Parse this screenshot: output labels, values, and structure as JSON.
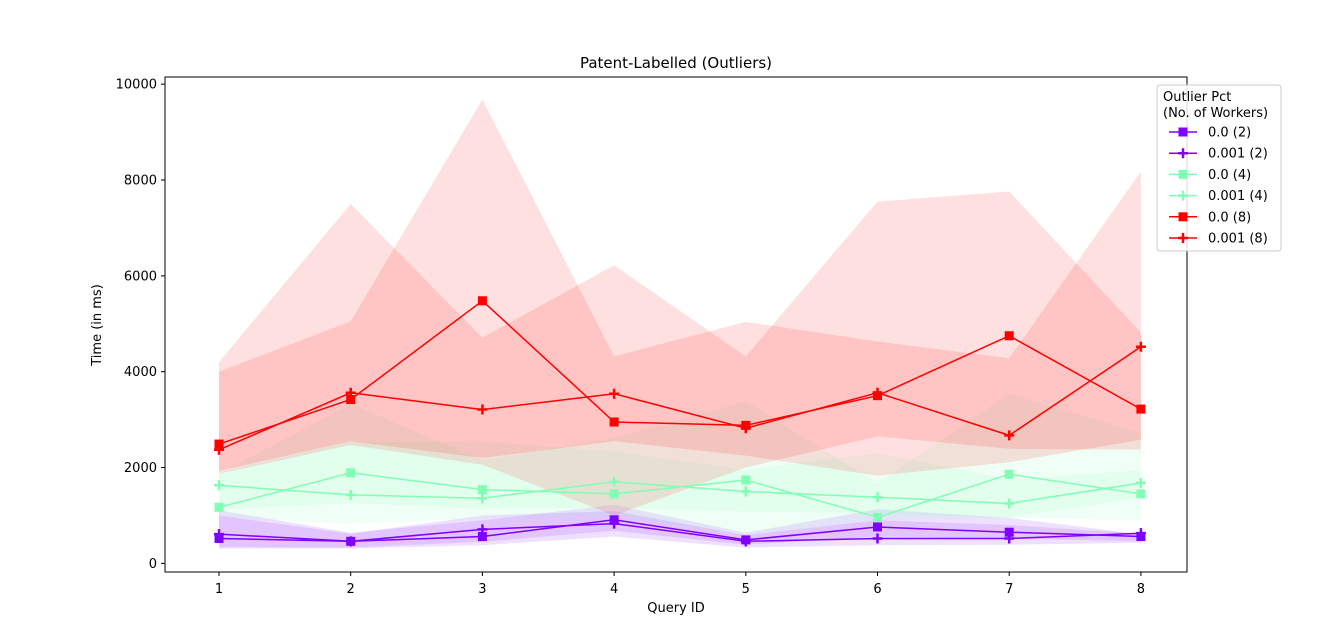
{
  "chart_data": {
    "type": "line",
    "title": "Patent-Labelled (Outliers)",
    "xlabel": "Query ID",
    "ylabel": "Time (in ms)",
    "x": [
      1,
      2,
      3,
      4,
      5,
      6,
      7,
      8
    ],
    "xticks": [
      "1",
      "2",
      "3",
      "4",
      "5",
      "6",
      "7",
      "8"
    ],
    "yticks": [
      "0",
      "2000",
      "4000",
      "6000",
      "8000",
      "10000"
    ],
    "xlim": [
      0.59,
      8.35
    ],
    "ylim": [
      -180,
      10150
    ],
    "grid": false,
    "legend": {
      "title": "Outlier Pct\n(No. of Workers)",
      "title_lines": [
        "Outlier Pct",
        "(No. of Workers)"
      ],
      "placement": "top-right, outside"
    },
    "series": [
      {
        "name": "0.0 (2)",
        "color": "#8000ff",
        "marker": "square",
        "values": [
          520,
          460,
          560,
          910,
          490,
          760,
          650,
          560
        ],
        "band_low": [
          340,
          330,
          450,
          680,
          390,
          560,
          520,
          460
        ],
        "band_high": [
          1110,
          640,
          900,
          1220,
          640,
          1130,
          950,
          610
        ]
      },
      {
        "name": "0.001 (2)",
        "color": "#8000ff",
        "marker": "plus",
        "values": [
          610,
          460,
          710,
          830,
          460,
          520,
          520,
          630
        ],
        "band_low": [
          310,
          310,
          380,
          560,
          330,
          380,
          390,
          430
        ],
        "band_high": [
          1000,
          620,
          1000,
          1090,
          590,
          900,
          800,
          620
        ]
      },
      {
        "name": "0.0 (4)",
        "color": "#80ffb4",
        "marker": "square",
        "values": [
          1170,
          1890,
          1540,
          1450,
          1740,
          960,
          1860,
          1450
        ],
        "band_low": [
          960,
          830,
          940,
          1000,
          600,
          900,
          950,
          900
        ],
        "band_high": [
          1860,
          3330,
          2150,
          2620,
          3380,
          1680,
          3540,
          2720
        ]
      },
      {
        "name": "0.001 (4)",
        "color": "#80ffb4",
        "marker": "plus",
        "values": [
          1630,
          1430,
          1360,
          1700,
          1500,
          1380,
          1250,
          1680
        ],
        "band_low": [
          1120,
          1260,
          1140,
          1160,
          1080,
          1040,
          960,
          1370
        ],
        "band_high": [
          1880,
          2550,
          2540,
          2330,
          1950,
          2300,
          1750,
          1940
        ]
      },
      {
        "name": "0.0 (8)",
        "color": "#ff0000",
        "marker": "square",
        "values": [
          2490,
          3420,
          5480,
          2950,
          2880,
          3500,
          4750,
          3220
        ],
        "band_low": [
          1870,
          2470,
          2060,
          1000,
          2000,
          2650,
          2390,
          2370
        ],
        "band_high": [
          4000,
          5050,
          9680,
          4320,
          5040,
          4630,
          4280,
          8180
        ]
      },
      {
        "name": "0.001 (8)",
        "color": "#ff0000",
        "marker": "plus",
        "values": [
          2370,
          3560,
          3210,
          3540,
          2820,
          3560,
          2670,
          4520
        ],
        "band_low": [
          1930,
          2550,
          2200,
          2550,
          2250,
          1830,
          2110,
          2580
        ],
        "band_high": [
          4200,
          7500,
          4710,
          6220,
          4320,
          7550,
          7760,
          4820
        ]
      }
    ]
  }
}
